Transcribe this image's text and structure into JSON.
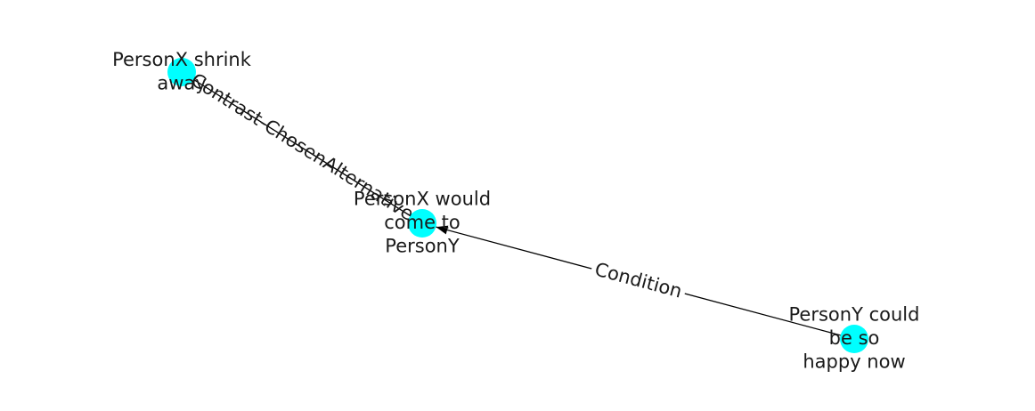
{
  "graph": {
    "node_color": "#00ffff",
    "edge_color": "#000000",
    "nodes": [
      {
        "id": "shrink",
        "lines": [
          "PersonX shrink",
          "away"
        ]
      },
      {
        "id": "come",
        "lines": [
          "PersonX would",
          "come to",
          "PersonY"
        ]
      },
      {
        "id": "happy",
        "lines": [
          "PersonY could",
          "be so",
          "happy now"
        ]
      }
    ],
    "edges": [
      {
        "source": "happy",
        "target": "come",
        "label": "Condition",
        "arrow": true
      },
      {
        "source": "shrink",
        "target": "come",
        "label": "Contrast-ChosenAlternative",
        "arrow": false
      }
    ]
  }
}
